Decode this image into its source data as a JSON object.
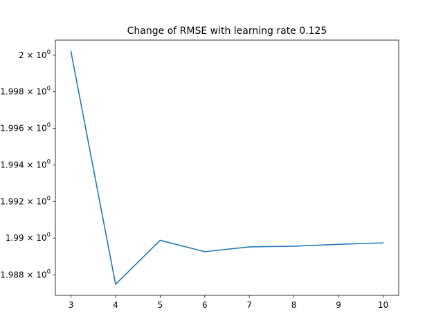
{
  "chart_data": {
    "type": "line",
    "title": "Change of RMSE with learning rate 0.125",
    "xlabel": "",
    "ylabel": "",
    "x": [
      3,
      4,
      5,
      6,
      7,
      8,
      9,
      10
    ],
    "series": [
      {
        "values": [
          2.0002,
          1.98748,
          1.98988,
          1.98926,
          1.98952,
          1.98956,
          1.98966,
          1.98974
        ]
      }
    ],
    "xlim": [
      2.65,
      10.35
    ],
    "ylim": [
      1.98688,
      2.00083
    ],
    "x_ticks": [
      3,
      4,
      5,
      6,
      7,
      8,
      9,
      10
    ],
    "y_ticks": [
      {
        "value": 1.988,
        "mantissa": "1.988",
        "suffix": "× 10",
        "exponent": "0"
      },
      {
        "value": 1.99,
        "mantissa": "1.99",
        "suffix": "× 10",
        "exponent": "0"
      },
      {
        "value": 1.992,
        "mantissa": "1.992",
        "suffix": "× 10",
        "exponent": "0"
      },
      {
        "value": 1.994,
        "mantissa": "1.994",
        "suffix": "× 10",
        "exponent": "0"
      },
      {
        "value": 1.996,
        "mantissa": "1.996",
        "suffix": "× 10",
        "exponent": "0"
      },
      {
        "value": 1.998,
        "mantissa": "1.998",
        "suffix": "× 10",
        "exponent": "0"
      },
      {
        "value": 2.0,
        "mantissa": "2",
        "suffix": "× 10",
        "exponent": "0"
      }
    ],
    "y_scale": "log",
    "grid": false,
    "line_color": "#1f77b4"
  }
}
